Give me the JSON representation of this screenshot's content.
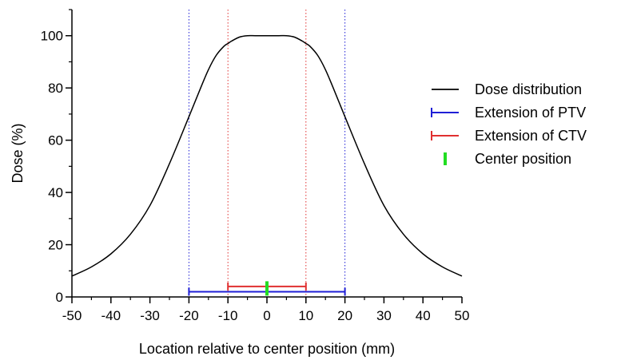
{
  "chart_data": {
    "type": "line",
    "xlabel": "Location relative to center position (mm)",
    "ylabel": "Dose (%)",
    "xlim": [
      -50,
      50
    ],
    "ylim": [
      0,
      110
    ],
    "xticks": [
      -50,
      -40,
      -30,
      -20,
      -10,
      0,
      10,
      20,
      30,
      40,
      50
    ],
    "yticks": [
      0,
      20,
      40,
      60,
      80,
      100
    ],
    "grid": false,
    "legend_position": "right",
    "series": [
      {
        "name": "Dose distribution",
        "kind": "line",
        "color": "#000000",
        "x": [
          -50,
          -45,
          -40,
          -35,
          -30,
          -25,
          -20,
          -17,
          -15,
          -13,
          -11,
          -10,
          -9,
          -7,
          -5,
          -3,
          0,
          3,
          5,
          7,
          9,
          10,
          11,
          13,
          15,
          17,
          20,
          25,
          30,
          35,
          40,
          45,
          50
        ],
        "y": [
          8,
          11.5,
          16.5,
          24,
          35,
          51,
          69,
          80,
          87,
          92.5,
          96,
          97,
          98,
          99.5,
          100,
          100,
          100,
          100,
          100,
          99.5,
          98,
          97,
          96,
          92.5,
          87,
          80,
          69,
          51,
          35,
          24,
          16.5,
          11.5,
          8
        ]
      },
      {
        "name": "Extension of PTV",
        "kind": "range",
        "color": "#1f1fd6",
        "from": -20,
        "to": 20,
        "y": 2,
        "guide_lines": [
          -20,
          20
        ]
      },
      {
        "name": "Extension of CTV",
        "kind": "range",
        "color": "#e03030",
        "from": -10,
        "to": 10,
        "y": 4,
        "guide_lines": [
          -10,
          10
        ]
      },
      {
        "name": "Center position",
        "kind": "marker",
        "color": "#22dd22",
        "x": 0,
        "y_from": 0.5,
        "y_to": 6
      }
    ]
  }
}
